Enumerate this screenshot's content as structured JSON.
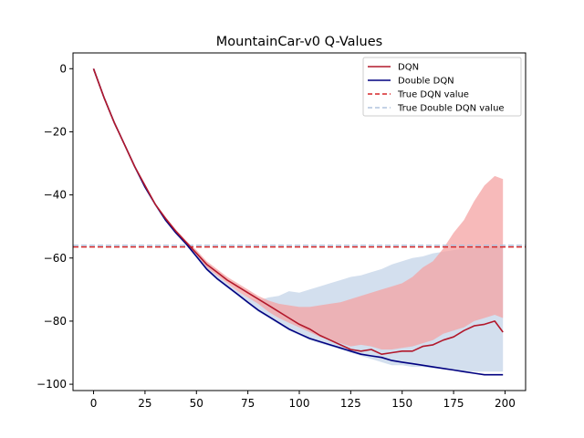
{
  "chart_data": {
    "type": "line",
    "title": "MountainCar-v0 Q-Values",
    "xlabel": "",
    "ylabel": "",
    "xlim": [
      -10,
      210
    ],
    "ylim": [
      -102,
      5
    ],
    "xticks": [
      0,
      25,
      50,
      75,
      100,
      125,
      150,
      175,
      200
    ],
    "yticks": [
      0,
      -20,
      -40,
      -60,
      -80,
      -100
    ],
    "xtick_labels": [
      "0",
      "25",
      "50",
      "75",
      "100",
      "125",
      "150",
      "175",
      "200"
    ],
    "ytick_labels": [
      "0",
      "−20",
      "−40",
      "−60",
      "−80",
      "−100"
    ],
    "grid": false,
    "legend_position": "top-right",
    "series": [
      {
        "name": "DQN",
        "color": "#b2182b",
        "fill_color": "#f4a3a3",
        "x": [
          0,
          5,
          10,
          15,
          20,
          25,
          30,
          35,
          40,
          45,
          50,
          55,
          60,
          65,
          70,
          75,
          80,
          85,
          90,
          95,
          100,
          105,
          110,
          115,
          120,
          125,
          130,
          135,
          140,
          145,
          150,
          155,
          160,
          165,
          170,
          175,
          180,
          185,
          190,
          195,
          199
        ],
        "mean": [
          0,
          -9,
          -17,
          -24,
          -31,
          -37,
          -43,
          -47.5,
          -51.5,
          -55,
          -58.5,
          -62,
          -64.5,
          -67,
          -69,
          -71,
          -73,
          -75,
          -77,
          -79,
          -81,
          -82.5,
          -84.5,
          -86,
          -87.5,
          -89,
          -89.5,
          -89,
          -90.5,
          -90,
          -89.5,
          -89.5,
          -88,
          -87.5,
          -86,
          -85,
          -83,
          -81.5,
          -81,
          -80,
          -83.5
        ],
        "upper": [
          0,
          -9,
          -17,
          -24,
          -31,
          -37,
          -43,
          -47,
          -51,
          -54.5,
          -57.5,
          -61,
          -63.5,
          -66,
          -68,
          -70,
          -72,
          -73.5,
          -74.5,
          -75,
          -75.5,
          -75.5,
          -75,
          -74.5,
          -74,
          -73,
          -72,
          -71,
          -70,
          -69,
          -68,
          -66,
          -63,
          -61,
          -57,
          -52,
          -48,
          -42,
          -37,
          -34,
          -35
        ],
        "lower": [
          0,
          -9,
          -17,
          -24,
          -31,
          -37,
          -43,
          -48,
          -52,
          -55.5,
          -59,
          -63,
          -65.5,
          -68,
          -70.5,
          -72.5,
          -74.5,
          -77,
          -79,
          -80.5,
          -82,
          -83.5,
          -85,
          -86,
          -87,
          -88,
          -87.5,
          -88,
          -89,
          -89,
          -88.5,
          -88,
          -87,
          -86,
          -84,
          -83,
          -82,
          -80,
          -79,
          -78,
          -79
        ]
      },
      {
        "name": "Double DQN",
        "color": "#000080",
        "fill_color": "#c4d4e8",
        "x": [
          0,
          5,
          10,
          15,
          20,
          25,
          30,
          35,
          40,
          45,
          50,
          55,
          60,
          65,
          70,
          75,
          80,
          85,
          90,
          95,
          100,
          105,
          110,
          115,
          120,
          125,
          130,
          135,
          140,
          145,
          150,
          155,
          160,
          165,
          170,
          175,
          180,
          185,
          190,
          195,
          199
        ],
        "mean": [
          0,
          -9,
          -17,
          -24,
          -31,
          -37.5,
          -43,
          -48,
          -52,
          -55.5,
          -59.5,
          -63.5,
          -66.5,
          -69,
          -71.5,
          -74,
          -76.5,
          -78.5,
          -80.5,
          -82.5,
          -84,
          -85.5,
          -86.5,
          -87.5,
          -88.5,
          -89.5,
          -90.5,
          -91,
          -91.5,
          -92.5,
          -93,
          -93.5,
          -94,
          -94.5,
          -95,
          -95.5,
          -96,
          -96.5,
          -97,
          -97,
          -97
        ],
        "upper": [
          0,
          -9,
          -17,
          -24,
          -31,
          -37.5,
          -43,
          -48,
          -52,
          -55.5,
          -59,
          -62.5,
          -65.5,
          -68,
          -70.5,
          -72.5,
          -73.5,
          -72.5,
          -72,
          -70.5,
          -71,
          -70,
          -69,
          -68,
          -67,
          -66,
          -65.5,
          -64.5,
          -63.5,
          -62,
          -61,
          -60,
          -59.5,
          -58.5,
          -58,
          -57.5,
          -57,
          -57,
          -56.5,
          -56.5,
          -56
        ],
        "lower": [
          0,
          -9,
          -17,
          -24,
          -31,
          -38,
          -43.5,
          -48.5,
          -52.5,
          -56,
          -60,
          -64,
          -67,
          -69.5,
          -72,
          -74.5,
          -77,
          -79,
          -81,
          -83,
          -84.5,
          -86,
          -87,
          -88,
          -89,
          -90,
          -91,
          -92,
          -93,
          -94,
          -94,
          -94.5,
          -94.5,
          -95,
          -95,
          -95.5,
          -96,
          -96,
          -96,
          -96,
          -96
        ]
      }
    ],
    "reference_lines": [
      {
        "name": "True DQN value",
        "y": -56.5,
        "color": "#d62728",
        "style": "dashed"
      },
      {
        "name": "True Double DQN value",
        "y": -56,
        "color": "#b0c4de",
        "style": "dashed"
      }
    ],
    "legend": [
      "DQN",
      "Double DQN",
      "True DQN value",
      "True Double DQN value"
    ]
  }
}
